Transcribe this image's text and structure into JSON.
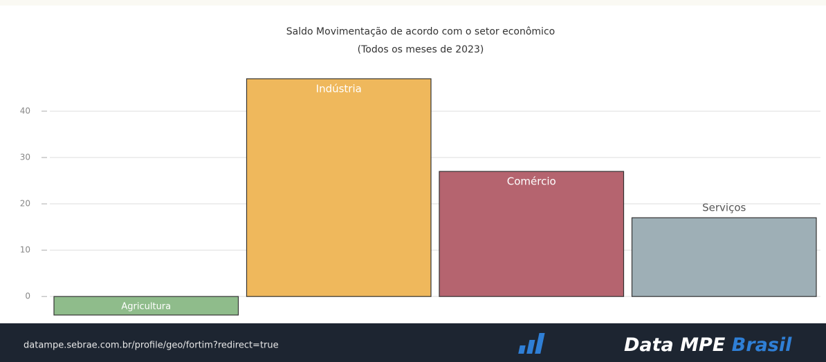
{
  "chart_data": {
    "type": "bar",
    "title": "Saldo Movimentação de acordo com o setor econômico",
    "subtitle": "(Todos os meses de 2023)",
    "categories": [
      "Agricultura",
      "Indústria",
      "Comércio",
      "Serviços"
    ],
    "values": [
      -4,
      47,
      27,
      17
    ],
    "colors": [
      "#8fbc8b",
      "#efb85c",
      "#b5646f",
      "#9eafb6"
    ],
    "label_colors": [
      "#ffffff",
      "#ffffff",
      "#ffffff",
      "#555555"
    ],
    "label_positions": [
      "inside",
      "inside",
      "inside",
      "outside"
    ],
    "ylim": [
      -4,
      47
    ],
    "yticks": [
      0,
      10,
      20,
      30,
      40
    ],
    "grid": true
  },
  "footer": {
    "url": "datampe.sebrae.com.br/profile/geo/fortim?redirect=true",
    "logo": "Data MPE",
    "logo_accent": "Brasil"
  }
}
